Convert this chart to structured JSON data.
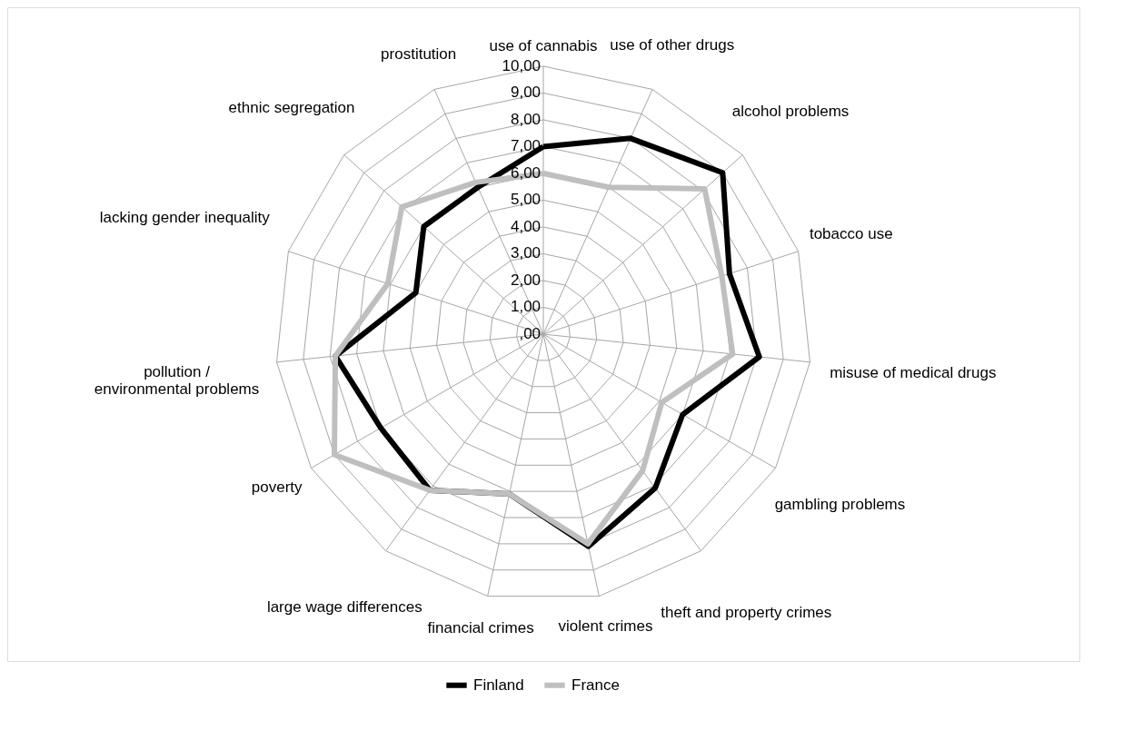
{
  "chart_data": {
    "type": "radar",
    "categories": [
      "use of cannabis",
      "use of other drugs",
      "alcohol problems",
      "tobacco use",
      "misuse of medical drugs",
      "gambling problems",
      "theft and property crimes",
      "violent crimes",
      "financial crimes",
      "large wage differences",
      "poverty",
      "pollution / environmental problems",
      "lacking gender inequality",
      "ethnic segregation",
      "prostitution"
    ],
    "series": [
      {
        "name": "Finland",
        "color": "#000000",
        "values": [
          7.0,
          8.0,
          9.0,
          7.3,
          8.1,
          6.0,
          7.1,
          8.1,
          6.1,
          7.2,
          7.0,
          7.8,
          5.0,
          6.0,
          6.0
        ]
      },
      {
        "name": "France",
        "color": "#bfbfbf",
        "values": [
          6.0,
          6.0,
          8.1,
          7.0,
          7.1,
          5.1,
          6.3,
          8.0,
          6.1,
          7.2,
          9.0,
          7.8,
          6.1,
          7.1,
          6.2
        ]
      }
    ],
    "ylim": [
      0,
      10
    ],
    "yticks": [
      {
        "value": 0,
        "label": ",00"
      },
      {
        "value": 1,
        "label": "1,00"
      },
      {
        "value": 2,
        "label": "2,00"
      },
      {
        "value": 3,
        "label": "3,00"
      },
      {
        "value": 4,
        "label": "4,00"
      },
      {
        "value": 5,
        "label": "5,00"
      },
      {
        "value": 6,
        "label": "6,00"
      },
      {
        "value": 7,
        "label": "7,00"
      },
      {
        "value": 8,
        "label": "8,00"
      },
      {
        "value": 9,
        "label": "9,00"
      },
      {
        "value": 10,
        "label": "10,00"
      }
    ],
    "grid": true,
    "legend": "bottom"
  }
}
